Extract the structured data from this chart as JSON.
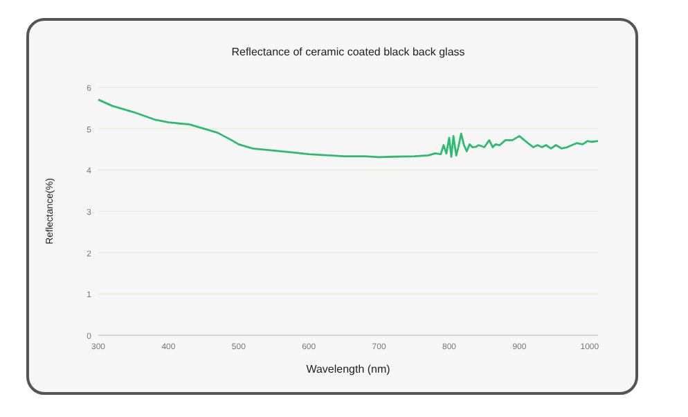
{
  "chart_data": {
    "type": "line",
    "title": "Reflectance of ceramic coated black back glass",
    "xlabel": "Wavelength (nm)",
    "ylabel": "Reflectance(%)",
    "series": [
      {
        "color": "#2dbb6e",
        "x": [
          300,
          320,
          350,
          380,
          400,
          430,
          450,
          470,
          490,
          500,
          520,
          550,
          580,
          600,
          630,
          650,
          680,
          700,
          720,
          750,
          770,
          780,
          788,
          792,
          796,
          800,
          803,
          806,
          810,
          813,
          817,
          821,
          825,
          829,
          833,
          838,
          842,
          850,
          857,
          862,
          866,
          872,
          880,
          890,
          900,
          905,
          912,
          920,
          926,
          932,
          938,
          945,
          952,
          960,
          968,
          975,
          982,
          990,
          997,
          1003,
          1012
        ],
        "values": [
          5.7,
          5.55,
          5.4,
          5.22,
          5.15,
          5.1,
          5.0,
          4.9,
          4.72,
          4.62,
          4.52,
          4.47,
          4.42,
          4.38,
          4.35,
          4.33,
          4.33,
          4.31,
          4.32,
          4.33,
          4.35,
          4.4,
          4.38,
          4.6,
          4.4,
          4.78,
          4.32,
          4.82,
          4.35,
          4.55,
          4.88,
          4.6,
          4.45,
          4.62,
          4.55,
          4.56,
          4.6,
          4.55,
          4.72,
          4.55,
          4.62,
          4.6,
          4.72,
          4.72,
          4.82,
          4.75,
          4.65,
          4.55,
          4.6,
          4.55,
          4.6,
          4.52,
          4.6,
          4.52,
          4.55,
          4.6,
          4.65,
          4.62,
          4.7,
          4.68,
          4.7
        ]
      }
    ],
    "xlim": [
      300,
      1012
    ],
    "ylim": [
      0,
      6
    ],
    "xticks": [
      300,
      400,
      500,
      600,
      700,
      800,
      900,
      1000
    ],
    "yticks": [
      0,
      1,
      2,
      3,
      4,
      5,
      6
    ],
    "grid": "y",
    "marker": "none",
    "line_style": "solid"
  }
}
